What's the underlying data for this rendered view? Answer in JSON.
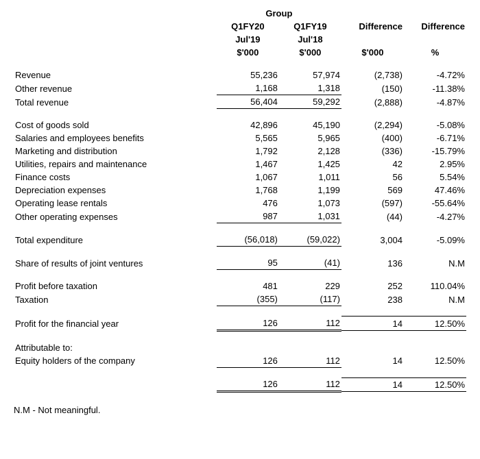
{
  "header": {
    "group": "Group",
    "col1_line1": "Q1FY20",
    "col1_line2": "Jul'19",
    "col1_line3": "$'000",
    "col2_line1": "Q1FY19",
    "col2_line2": "Jul'18",
    "col2_line3": "$'000",
    "col3_line1": "Difference",
    "col3_line3": "$'000",
    "col4_line1": "Difference",
    "col4_line3": "%"
  },
  "rows": {
    "revenue": {
      "label": "Revenue",
      "c1": "55,236",
      "c2": "57,974",
      "c3": "(2,738)",
      "c4": "-4.72%"
    },
    "other_revenue": {
      "label": "Other revenue",
      "c1": "1,168",
      "c2": "1,318",
      "c3": "(150)",
      "c4": "-11.38%"
    },
    "total_revenue": {
      "label": "Total revenue",
      "c1": "56,404",
      "c2": "59,292",
      "c3": "(2,888)",
      "c4": "-4.87%"
    },
    "cogs": {
      "label": "Cost of goods sold",
      "c1": "42,896",
      "c2": "45,190",
      "c3": "(2,294)",
      "c4": "-5.08%"
    },
    "salaries": {
      "label": "Salaries and employees benefits",
      "c1": "5,565",
      "c2": "5,965",
      "c3": "(400)",
      "c4": "-6.71%"
    },
    "marketing": {
      "label": "Marketing and distribution",
      "c1": "1,792",
      "c2": "2,128",
      "c3": "(336)",
      "c4": "-15.79%"
    },
    "utilities": {
      "label": "Utilities, repairs and maintenance",
      "c1": "1,467",
      "c2": "1,425",
      "c3": "42",
      "c4": "2.95%"
    },
    "finance": {
      "label": "Finance costs",
      "c1": "1,067",
      "c2": "1,011",
      "c3": "56",
      "c4": "5.54%"
    },
    "depreciation": {
      "label": "Depreciation expenses",
      "c1": "1,768",
      "c2": "1,199",
      "c3": "569",
      "c4": "47.46%"
    },
    "lease": {
      "label": "Operating lease rentals",
      "c1": "476",
      "c2": "1,073",
      "c3": "(597)",
      "c4": "-55.64%"
    },
    "other_opex": {
      "label": "Other operating expenses",
      "c1": "987",
      "c2": "1,031",
      "c3": "(44)",
      "c4": "-4.27%"
    },
    "total_expenditure": {
      "label": "Total expenditure",
      "c1": "(56,018)",
      "c2": "(59,022)",
      "c3": "3,004",
      "c4": "-5.09%"
    },
    "jv": {
      "label": "Share of results of joint ventures",
      "c1": "95",
      "c2": "(41)",
      "c3": "136",
      "c4": "N.M"
    },
    "pbt": {
      "label": "Profit before taxation",
      "c1": "481",
      "c2": "229",
      "c3": "252",
      "c4": "110.04%"
    },
    "tax": {
      "label": "Taxation",
      "c1": "(355)",
      "c2": "(117)",
      "c3": "238",
      "c4": "N.M"
    },
    "profit_year": {
      "label": "Profit for the financial year",
      "c1": "126",
      "c2": "112",
      "c3": "14",
      "c4": "12.50%"
    },
    "attributable": {
      "label": "Attributable to:"
    },
    "equity_holders": {
      "label": "Equity holders of the company",
      "c1": "126",
      "c2": "112",
      "c3": "14",
      "c4": "12.50%"
    },
    "attributable_total": {
      "c1": "126",
      "c2": "112",
      "c3": "14",
      "c4": "12.50%"
    }
  },
  "footnote": "N.M - Not meaningful."
}
